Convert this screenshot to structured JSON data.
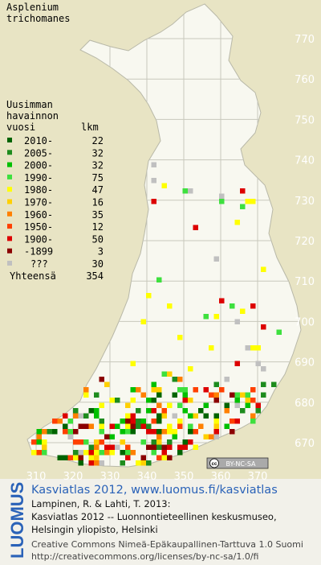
{
  "title": [
    "Asplenium",
    "trichomanes"
  ],
  "legend": {
    "heading": [
      "Uusimman",
      "havainnon",
      "vuosi"
    ],
    "count_heading": "lkm",
    "rows": [
      {
        "label": "2010-",
        "count": 22,
        "color": "#006400"
      },
      {
        "label": "2005-",
        "count": 32,
        "color": "#1e8c1e"
      },
      {
        "label": "2000-",
        "count": 32,
        "color": "#00c000"
      },
      {
        "label": "1990-",
        "count": 75,
        "color": "#3ee03e"
      },
      {
        "label": "1980-",
        "count": 47,
        "color": "#ffff00"
      },
      {
        "label": "1970-",
        "count": 16,
        "color": "#ffd000"
      },
      {
        "label": "1960-",
        "count": 35,
        "color": "#ff8000"
      },
      {
        "label": "1950-",
        "count": 12,
        "color": "#ff4000"
      },
      {
        "label": "1900-",
        "count": 50,
        "color": "#dd0000"
      },
      {
        "label": "-1899",
        "count": 3,
        "color": "#8b0000"
      },
      {
        "label": "???",
        "count": 30,
        "color": "#c0c0c0"
      }
    ],
    "total_label": "Yhteensä",
    "total": 354
  },
  "map": {
    "y_labels": [
      770,
      760,
      750,
      740,
      730,
      720,
      710,
      700,
      690,
      680,
      670
    ],
    "x_labels": [
      310,
      320,
      330,
      340,
      350,
      360,
      370
    ]
  },
  "badge": {
    "icon": "cc",
    "text": "BY-NC-SA"
  },
  "footer": {
    "atlas": "Kasviatlas 2012, www.luomus.fi/kasviatlas",
    "citation": [
      "Lampinen, R. & Lahti, T. 2013:",
      "Kasviatlas 2012 -- Luonnontieteellinen keskusmuseo,",
      "Helsingin yliopisto, Helsinki"
    ],
    "license": [
      "Creative Commons Nimeä-Epäkaupallinen-Tarttuva 1.0 Suomi",
      "http://creativecommons.org/licenses/by-nc-sa/1.0/fi"
    ]
  },
  "logo": "LUOMUS"
}
